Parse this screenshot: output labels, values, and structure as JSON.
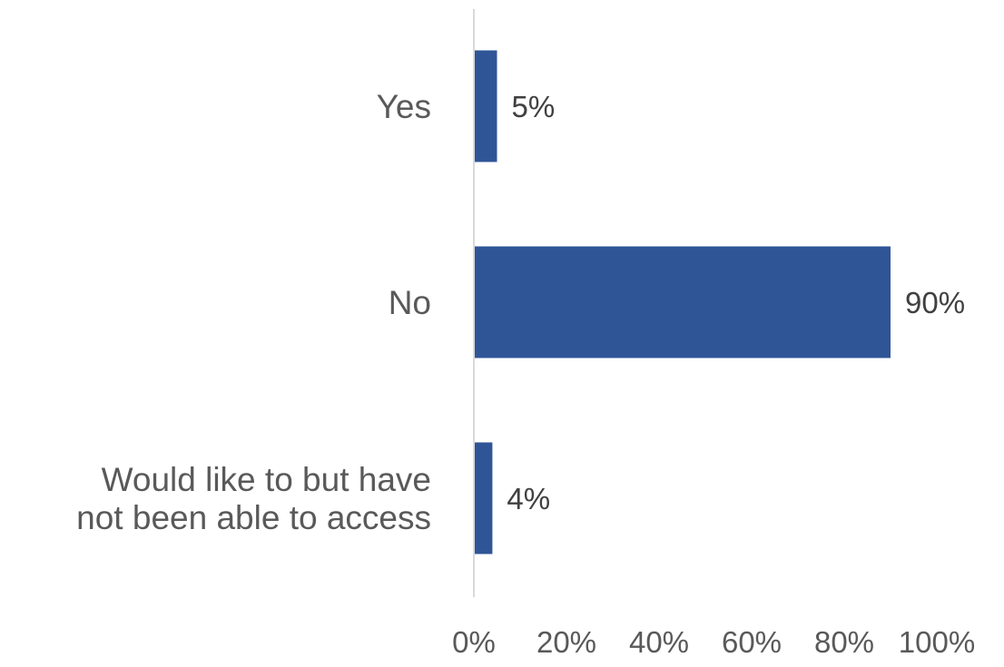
{
  "chart_data": {
    "type": "bar",
    "orientation": "horizontal",
    "categories": [
      "Yes",
      "No",
      "Would like to but have not been able to access"
    ],
    "category_lines": [
      [
        "Yes"
      ],
      [
        "No"
      ],
      [
        "Would like to but have",
        "not been able to access"
      ]
    ],
    "values": [
      5,
      90,
      4
    ],
    "data_labels": [
      "5%",
      "90%",
      "4%"
    ],
    "xlim": [
      0,
      100
    ],
    "x_ticks": [
      0,
      20,
      40,
      60,
      80,
      100
    ],
    "x_tick_labels": [
      "0%",
      "20%",
      "40%",
      "60%",
      "80%",
      "100%"
    ],
    "title": "",
    "xlabel": "",
    "ylabel": "",
    "grid": false,
    "legend": "none",
    "bar_color": "#2F5597",
    "axis_color": "#D9D9D9"
  }
}
